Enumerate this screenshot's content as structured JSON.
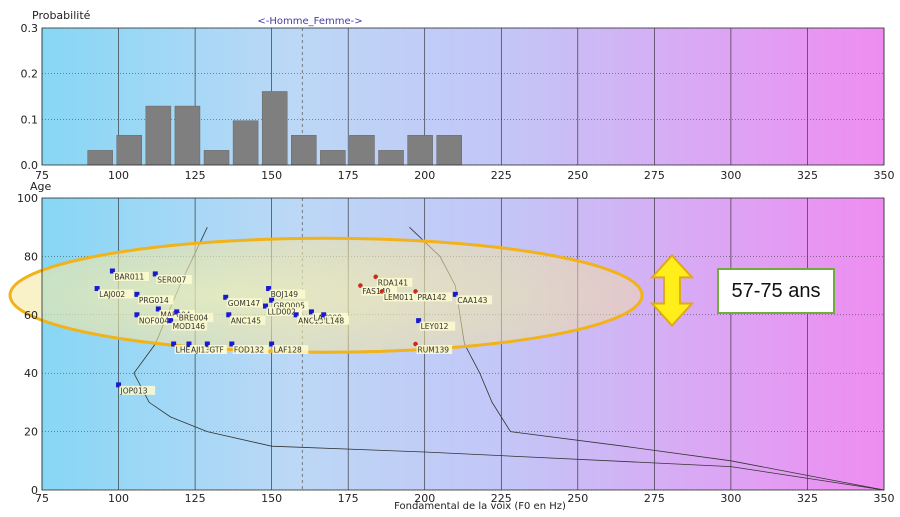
{
  "chart_data": [
    {
      "type": "bar",
      "panel": "top",
      "ylabel": "Probabilité",
      "legend_text": "<-Homme_Femme->",
      "xlim": [
        75,
        350
      ],
      "ylim": [
        0,
        0.3
      ],
      "x_ticks": [
        "75",
        "100",
        "125",
        "150",
        "175",
        "200",
        "225",
        "250",
        "275",
        "300",
        "325",
        "350"
      ],
      "y_ticks": [
        "0.0",
        "0.1",
        "0.2",
        "0.3"
      ],
      "bin_width": 8.5,
      "bins": [
        {
          "x": 94,
          "value": 0.032
        },
        {
          "x": 103.5,
          "value": 0.065
        },
        {
          "x": 113,
          "value": 0.129
        },
        {
          "x": 122.5,
          "value": 0.129
        },
        {
          "x": 132,
          "value": 0.032
        },
        {
          "x": 141.5,
          "value": 0.097
        },
        {
          "x": 151,
          "value": 0.161
        },
        {
          "x": 160.5,
          "value": 0.065
        },
        {
          "x": 170,
          "value": 0.032
        },
        {
          "x": 179.5,
          "value": 0.065
        },
        {
          "x": 189,
          "value": 0.032
        },
        {
          "x": 198.5,
          "value": 0.065
        },
        {
          "x": 208,
          "value": 0.065
        }
      ],
      "bar_color": "#7f7f7f"
    },
    {
      "type": "scatter",
      "panel": "bottom",
      "ylabel": "Age",
      "xlabel": "Fondamental de la voix (F0 en Hz)",
      "xlim": [
        75,
        350
      ],
      "ylim": [
        0,
        100
      ],
      "x_ticks": [
        "75",
        "100",
        "125",
        "150",
        "175",
        "200",
        "225",
        "250",
        "275",
        "300",
        "325",
        "350"
      ],
      "y_ticks": [
        "0",
        "20",
        "40",
        "60",
        "80",
        "100"
      ],
      "male_color": "#1a1acc",
      "female_color": "#cc2a1a",
      "points": [
        {
          "x": 98,
          "y": 75,
          "label": "BAR011",
          "sex": "M"
        },
        {
          "x": 112,
          "y": 74,
          "label": "SER007",
          "sex": "M"
        },
        {
          "x": 93,
          "y": 69,
          "label": "LAJ002",
          "sex": "M"
        },
        {
          "x": 106,
          "y": 67,
          "label": "PRG014",
          "sex": "M"
        },
        {
          "x": 113,
          "y": 62,
          "label": "MAF004",
          "sex": "M"
        },
        {
          "x": 106,
          "y": 60,
          "label": "NOF004",
          "sex": "M"
        },
        {
          "x": 119,
          "y": 61,
          "label": "BRE004",
          "sex": "M"
        },
        {
          "x": 117,
          "y": 58,
          "label": "MOD146",
          "sex": "M"
        },
        {
          "x": 135,
          "y": 66,
          "label": "GOM147",
          "sex": "M"
        },
        {
          "x": 136,
          "y": 60,
          "label": "ANC145",
          "sex": "M"
        },
        {
          "x": 149,
          "y": 69,
          "label": "BOJ149",
          "sex": "M"
        },
        {
          "x": 150,
          "y": 65,
          "label": "GRO005",
          "sex": "M"
        },
        {
          "x": 148,
          "y": 63,
          "label": "LLD002",
          "sex": "M"
        },
        {
          "x": 158,
          "y": 60,
          "label": "ANC150",
          "sex": "M"
        },
        {
          "x": 163,
          "y": 61,
          "label": "LAV008",
          "sex": "M"
        },
        {
          "x": 167,
          "y": 60,
          "label": "L148",
          "sex": "M"
        },
        {
          "x": 118,
          "y": 50,
          "label": "LHE123",
          "sex": "M"
        },
        {
          "x": 123,
          "y": 50,
          "label": "AJI130",
          "sex": "M"
        },
        {
          "x": 129,
          "y": 50,
          "label": "GTF",
          "sex": "M"
        },
        {
          "x": 137,
          "y": 50,
          "label": "FOD132",
          "sex": "M"
        },
        {
          "x": 150,
          "y": 50,
          "label": "LAF128",
          "sex": "M"
        },
        {
          "x": 100,
          "y": 36,
          "label": "JOP013",
          "sex": "M"
        },
        {
          "x": 198,
          "y": 58,
          "label": "LEY012",
          "sex": "M"
        },
        {
          "x": 210,
          "y": 67,
          "label": "CAA143",
          "sex": "M"
        },
        {
          "x": 184,
          "y": 73,
          "label": "RDA141",
          "sex": "F"
        },
        {
          "x": 179,
          "y": 70,
          "label": "FAS140",
          "sex": "F"
        },
        {
          "x": 186,
          "y": 68,
          "label": "LEM011",
          "sex": "F"
        },
        {
          "x": 197,
          "y": 68,
          "label": "PRA142",
          "sex": "F"
        },
        {
          "x": 197,
          "y": 50,
          "label": "RUM139",
          "sex": "F"
        }
      ],
      "envelope_left": [
        [
          129,
          90
        ],
        [
          120,
          70
        ],
        [
          112,
          50
        ],
        [
          105,
          40
        ],
        [
          110,
          30
        ],
        [
          117,
          25
        ],
        [
          129,
          20
        ],
        [
          150,
          15
        ],
        [
          200,
          13
        ],
        [
          300,
          8
        ],
        [
          350,
          0
        ]
      ],
      "envelope_right": [
        [
          195,
          90
        ],
        [
          205,
          80
        ],
        [
          210,
          70
        ],
        [
          213,
          50
        ],
        [
          218,
          40
        ],
        [
          222,
          30
        ],
        [
          228,
          20
        ],
        [
          265,
          15
        ],
        [
          300,
          10
        ],
        [
          350,
          0
        ]
      ],
      "annotation": {
        "text": "57-75 ans",
        "range": [
          57,
          75
        ]
      }
    }
  ]
}
